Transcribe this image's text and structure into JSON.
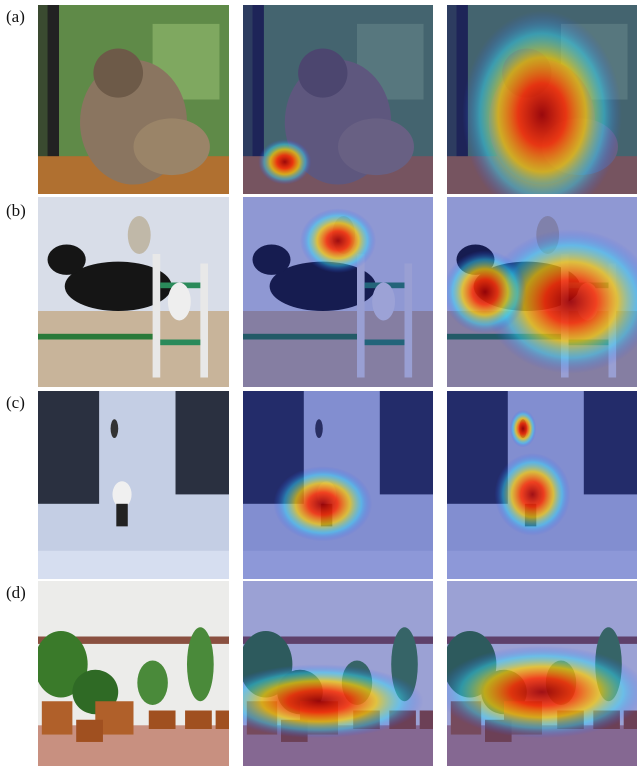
{
  "row_labels": [
    "(a)",
    "(b)",
    "(c)",
    "(d)"
  ]
}
